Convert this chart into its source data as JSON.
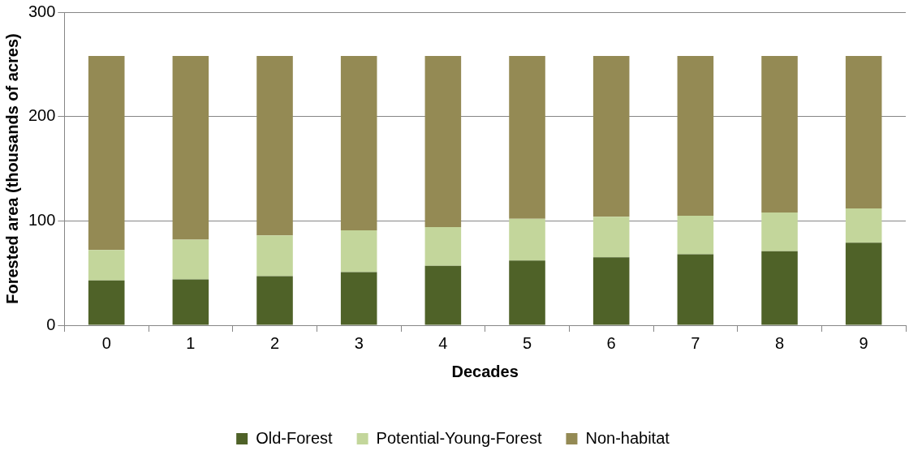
{
  "chart_data": {
    "type": "bar",
    "stacked": true,
    "xlabel": "Decades",
    "ylabel": "Forested area (thousands of acres)",
    "categories": [
      "0",
      "1",
      "2",
      "3",
      "4",
      "5",
      "6",
      "7",
      "8",
      "9"
    ],
    "series": [
      {
        "name": "Old-Forest",
        "color": "#4f6228",
        "values": [
          43,
          44,
          47,
          51,
          57,
          62,
          65,
          68,
          71,
          79
        ]
      },
      {
        "name": "Potential-Young-Forest",
        "color": "#c3d69b",
        "values": [
          29,
          38,
          39,
          40,
          37,
          40,
          39,
          37,
          37,
          33
        ]
      },
      {
        "name": "Non-habitat",
        "color": "#948a54",
        "values": [
          186,
          176,
          172,
          167,
          164,
          156,
          154,
          153,
          150,
          146
        ]
      }
    ],
    "ylim": [
      0,
      300
    ],
    "yticks": [
      0,
      100,
      200,
      300
    ],
    "grid": "y",
    "legend": "bottom"
  }
}
